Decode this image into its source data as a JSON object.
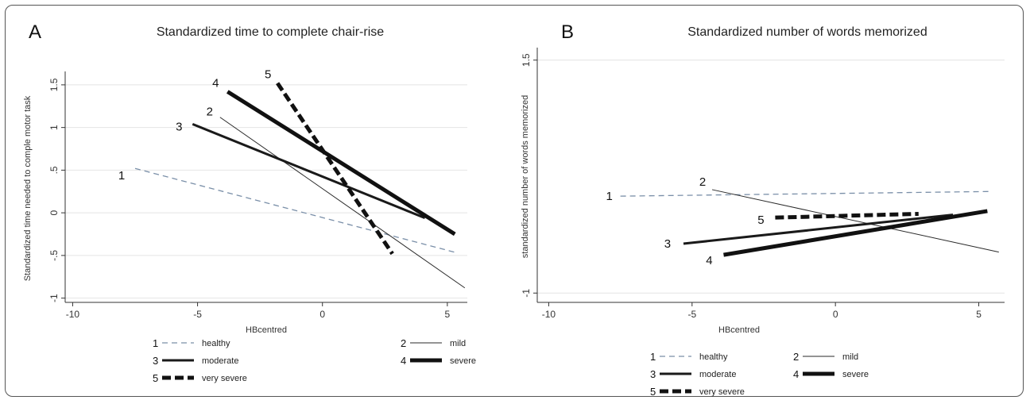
{
  "chart_data": [
    {
      "panel": "A",
      "type": "line",
      "title": "Standardized time to complete chair-rise",
      "xlabel": "HBcentred",
      "ylabel": "Standardized time needed to comple motor task",
      "xlim": [
        -10.3,
        5.8
      ],
      "ylim": [
        -1.05,
        1.62
      ],
      "xticks": [
        -10,
        -5,
        0,
        5
      ],
      "xtick_labels": [
        "-10",
        "-5",
        "0",
        "5"
      ],
      "yticks": [
        -1,
        -0.5,
        0,
        0.5,
        1,
        1.5
      ],
      "ytick_labels": [
        "-1",
        "-.5",
        "0",
        ".5",
        "1",
        "1.5"
      ],
      "grid": true,
      "legend": "bottom",
      "series": [
        {
          "id": "1",
          "name": "healthy",
          "x": [
            -7.5,
            5.4
          ],
          "y": [
            0.52,
            -0.47
          ]
        },
        {
          "id": "2",
          "name": "mild",
          "x": [
            -4.1,
            5.7
          ],
          "y": [
            1.12,
            -0.88
          ]
        },
        {
          "id": "3",
          "name": "moderate",
          "x": [
            -5.2,
            4.1
          ],
          "y": [
            1.04,
            -0.06
          ]
        },
        {
          "id": "4",
          "name": "severe",
          "x": [
            -3.8,
            5.3
          ],
          "y": [
            1.42,
            -0.25
          ]
        },
        {
          "id": "5",
          "name": "very severe",
          "x": [
            -1.8,
            2.8
          ],
          "y": [
            1.52,
            -0.48
          ]
        }
      ]
    },
    {
      "panel": "B",
      "type": "line",
      "title": "Standardized number of words memorized",
      "xlabel": "HBcentred",
      "ylabel": "standardized number of words memorized",
      "xlim": [
        -10.4,
        5.9
      ],
      "ylim": [
        -1.1,
        1.6
      ],
      "xticks": [
        -10,
        -5,
        0,
        5
      ],
      "xtick_labels": [
        "-10",
        "-5",
        "0",
        "5"
      ],
      "yticks": [
        -1,
        1.5
      ],
      "ytick_labels": [
        "-1",
        "1.5"
      ],
      "grid": true,
      "legend": "bottom",
      "series": [
        {
          "id": "1",
          "name": "healthy",
          "x": [
            -7.5,
            5.4
          ],
          "y": [
            0.04,
            0.09
          ]
        },
        {
          "id": "2",
          "name": "mild",
          "x": [
            -4.3,
            5.7
          ],
          "y": [
            0.11,
            -0.56
          ]
        },
        {
          "id": "3",
          "name": "moderate",
          "x": [
            -5.3,
            4.1
          ],
          "y": [
            -0.47,
            -0.16
          ]
        },
        {
          "id": "4",
          "name": "severe",
          "x": [
            -3.9,
            5.3
          ],
          "y": [
            -0.59,
            -0.12
          ]
        },
        {
          "id": "5",
          "name": "very severe",
          "x": [
            -2.1,
            2.9
          ],
          "y": [
            -0.19,
            -0.15
          ]
        }
      ]
    }
  ],
  "styles": {
    "healthy": {
      "color": "#7a8fa8",
      "dash": "7,5",
      "width": 1.3
    },
    "mild": {
      "color": "#2a2a2a",
      "dash": "",
      "width": 1
    },
    "moderate": {
      "color": "#1a1a1a",
      "dash": "",
      "width": 3
    },
    "severe": {
      "color": "#111111",
      "dash": "",
      "width": 5
    },
    "very severe": {
      "color": "#111111",
      "dash": "11,5",
      "width": 5
    }
  }
}
